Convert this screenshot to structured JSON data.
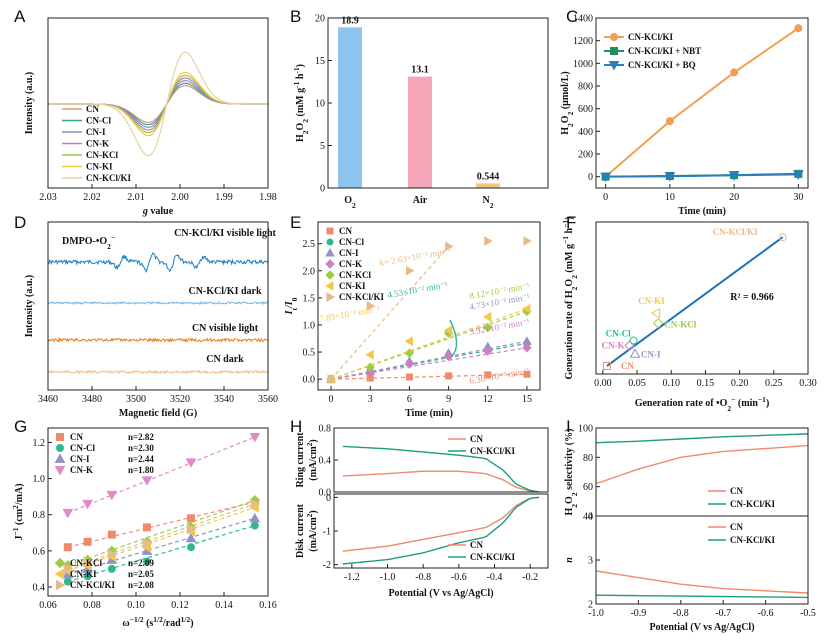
{
  "panel_labels": [
    "A",
    "B",
    "C",
    "D",
    "E",
    "F",
    "G",
    "H",
    "I"
  ],
  "chart_data": [
    {
      "id": "A",
      "type": "line",
      "title": "",
      "xlabel_parts": [
        "g",
        " value"
      ],
      "ylabel": "Intensity (a.u.)",
      "xlim": [
        2.03,
        1.98
      ],
      "xticks": [
        2.03,
        2.02,
        2.01,
        2.0,
        1.99,
        1.98
      ],
      "xticklabels": [
        "2.03",
        "2.02",
        "2.01",
        "2.00",
        "1.99",
        "1.98"
      ],
      "series": [
        {
          "name": "CN",
          "color": "#e8957a",
          "amp": 0.55
        },
        {
          "name": "CN-Cl",
          "color": "#3aa58c",
          "amp": 0.62
        },
        {
          "name": "CN-I",
          "color": "#8a8fc0",
          "amp": 0.7
        },
        {
          "name": "CN-K",
          "color": "#c77ab8",
          "amp": 0.78
        },
        {
          "name": "CN-KCl",
          "color": "#9cc93f",
          "amp": 0.86
        },
        {
          "name": "CN-KI",
          "color": "#f2c84b",
          "amp": 0.95
        },
        {
          "name": "CN-KCl/KI",
          "color": "#e4d3a6",
          "amp": 1.55
        }
      ]
    },
    {
      "id": "B",
      "type": "bar",
      "categories": [
        "O2",
        "Air",
        "N2"
      ],
      "category_labels": [
        [
          "O",
          "2"
        ],
        [
          "Air",
          ""
        ],
        [
          "N",
          "2"
        ]
      ],
      "values": [
        18.9,
        13.1,
        0.544
      ],
      "value_labels": [
        "18.9",
        "13.1",
        "0.544"
      ],
      "colors": [
        "#8ec5ee",
        "#f4a6b8",
        "#f5c77e"
      ],
      "ylabel": "H2O2 (mM g-1 h-1)",
      "ylabel_parts": [
        "H",
        "2",
        "O",
        "2",
        " (mM g",
        "-1",
        " h",
        "-1",
        ")"
      ],
      "ylim": [
        0,
        20
      ],
      "yticks": [
        0,
        5,
        10,
        15,
        20
      ],
      "yticklabels": [
        "0",
        "5",
        "10",
        "15",
        "20"
      ]
    },
    {
      "id": "C",
      "type": "line",
      "xlabel": "Time (min)",
      "ylabel": "H2O2 (μmol/L)",
      "ylabel_parts": [
        "H",
        "2",
        "O",
        "2",
        " (μmol/L)"
      ],
      "xlim": [
        -1.5,
        31.5
      ],
      "ylim": [
        -100,
        1400
      ],
      "xticks": [
        0,
        10,
        20,
        30
      ],
      "xticklabels": [
        "0",
        "10",
        "20",
        "30"
      ],
      "yticks": [
        0,
        200,
        400,
        600,
        800,
        1000,
        1200,
        1400
      ],
      "yticklabels": [
        "0",
        "200",
        "400",
        "600",
        "800",
        "1000",
        "1200",
        "1400"
      ],
      "series": [
        {
          "name": "CN-KCl/KI",
          "color": "#f0a050",
          "marker": "circle",
          "x": [
            0,
            10,
            20,
            30
          ],
          "y": [
            0,
            490,
            920,
            1310
          ]
        },
        {
          "name": "CN-KCl/KI + NBT",
          "color": "#1e9060",
          "marker": "square",
          "x": [
            0,
            10,
            20,
            30
          ],
          "y": [
            0,
            6,
            14,
            25
          ]
        },
        {
          "name": "CN-KCl/KI + BQ",
          "color": "#2980b9",
          "marker": "triangle-down",
          "x": [
            0,
            10,
            20,
            30
          ],
          "y": [
            0,
            4,
            12,
            20
          ]
        }
      ]
    },
    {
      "id": "D",
      "type": "line",
      "xlabel": "Magnetic field (G)",
      "ylabel": "Intensity (a.u.)",
      "xlim": [
        3460,
        3560
      ],
      "xticks": [
        3460,
        3480,
        3500,
        3520,
        3540,
        3560
      ],
      "xticklabels": [
        "3460",
        "3480",
        "3500",
        "3520",
        "3540",
        "3560"
      ],
      "annotation_parts": [
        "DMPO-•O",
        "2",
        "−"
      ],
      "series": [
        {
          "name": "CN-KCl/KI visible light",
          "color": "#1f7fc0"
        },
        {
          "name": "CN-KCl/KI dark",
          "color": "#73b8e6"
        },
        {
          "name": "CN visible light",
          "color": "#e87e22"
        },
        {
          "name": "CN dark",
          "color": "#f2bd88"
        }
      ]
    },
    {
      "id": "E",
      "type": "scatter",
      "xlabel": "Time (min)",
      "ylabel": "It/I0",
      "ylabel_parts": [
        "I",
        "t",
        "/I",
        "0"
      ],
      "xlim": [
        -1,
        16
      ],
      "ylim": [
        -0.2,
        2.9
      ],
      "xticks": [
        0,
        3,
        6,
        9,
        12,
        15
      ],
      "xticklabels": [
        "0",
        "3",
        "6",
        "9",
        "12",
        "15"
      ],
      "yticks": [
        0.0,
        0.5,
        1.0,
        1.5,
        2.0,
        2.5
      ],
      "yticklabels": [
        "0.0",
        "0.5",
        "1.0",
        "1.5",
        "2.0",
        "2.5"
      ],
      "series": [
        {
          "name": "CN",
          "color": "#f08a6c",
          "marker": "square",
          "x": [
            0,
            3,
            6,
            9,
            12,
            15
          ],
          "y": [
            0.0,
            0.02,
            0.04,
            0.06,
            0.08,
            0.09
          ],
          "k": "6.36×10⁻³ min⁻¹"
        },
        {
          "name": "CN-Cl",
          "color": "#2fb890",
          "marker": "circle",
          "x": [
            0,
            3,
            6,
            9,
            12,
            15
          ],
          "y": [
            0.0,
            0.16,
            0.3,
            0.42,
            0.55,
            0.66
          ],
          "k": "4.53×10⁻² min⁻¹"
        },
        {
          "name": "CN-I",
          "color": "#8f94c4",
          "marker": "triangle",
          "x": [
            0,
            3,
            6,
            9,
            12,
            15
          ],
          "y": [
            0.0,
            0.15,
            0.33,
            0.48,
            0.6,
            0.7
          ],
          "k": "4.73×10⁻² min⁻¹"
        },
        {
          "name": "CN-K",
          "color": "#d07ec0",
          "marker": "diamond",
          "x": [
            0,
            3,
            6,
            9,
            12,
            15
          ],
          "y": [
            0.0,
            0.13,
            0.28,
            0.42,
            0.52,
            0.58
          ],
          "k": "3.92×10⁻² min⁻¹"
        },
        {
          "name": "CN-KCl",
          "color": "#9bcc45",
          "marker": "diamond",
          "x": [
            0,
            3,
            6,
            9,
            12,
            15
          ],
          "y": [
            0.0,
            0.22,
            0.48,
            0.85,
            0.95,
            1.25
          ],
          "k": "8.12×10⁻² min⁻¹"
        },
        {
          "name": "CN-KI",
          "color": "#f2c84b",
          "marker": "triangle-left",
          "x": [
            0,
            3,
            6,
            9,
            12,
            15
          ],
          "y": [
            0.0,
            0.45,
            0.7,
            0.9,
            1.15,
            1.3
          ],
          "k": "7.89×10⁻² min⁻¹"
        },
        {
          "name": "CN-KCl/KI",
          "color": "#e6bb8a",
          "marker": "triangle-right",
          "x": [
            0,
            3,
            6,
            9,
            12,
            15
          ],
          "y": [
            0.0,
            1.35,
            2.0,
            2.45,
            2.55,
            2.55
          ],
          "k": "k= 2.63×10⁻¹ min⁻¹"
        }
      ]
    },
    {
      "id": "F",
      "type": "scatter",
      "xlabel_parts": [
        "Generation rate of •O",
        "2",
        "−",
        " (min",
        "−1",
        ")"
      ],
      "ylabel_parts": [
        "Generation rate of H",
        "2",
        "O",
        "2",
        " (mM g",
        "−1",
        " h",
        "−1",
        ")"
      ],
      "xlim": [
        -0.01,
        0.3
      ],
      "ylim": [
        -0.5,
        14.5
      ],
      "xticks": [
        0.0,
        0.05,
        0.1,
        0.15,
        0.2,
        0.25,
        0.3
      ],
      "xticklabels": [
        "0.00",
        "0.05",
        "0.10",
        "0.15",
        "0.20",
        "0.25",
        "0.30"
      ],
      "points": [
        {
          "name": "CN",
          "x": 0.006,
          "y": 0.3,
          "color": "#f08a6c",
          "marker": "square"
        },
        {
          "name": "CN-K",
          "x": 0.039,
          "y": 2.3,
          "color": "#d07ec0",
          "marker": "diamond"
        },
        {
          "name": "CN-I",
          "x": 0.047,
          "y": 1.5,
          "color": "#8f94c4",
          "marker": "triangle"
        },
        {
          "name": "CN-Cl",
          "x": 0.045,
          "y": 2.8,
          "color": "#2fb890",
          "marker": "circle"
        },
        {
          "name": "CN-KCl",
          "x": 0.081,
          "y": 4.5,
          "color": "#9bcc45",
          "marker": "diamond"
        },
        {
          "name": "CN-KI",
          "x": 0.078,
          "y": 5.5,
          "color": "#f2c84b",
          "marker": "triangle-left"
        },
        {
          "name": "CN-KCl/KI",
          "x": 0.263,
          "y": 13.0,
          "color": "#e6bb8a",
          "marker": "circle"
        }
      ],
      "fit": {
        "x": [
          0.006,
          0.263
        ],
        "y": [
          0.3,
          13.0
        ],
        "color": "#1f72b8"
      },
      "r2": "R² = 0.966"
    },
    {
      "id": "G",
      "type": "scatter",
      "xlabel_parts": [
        "ω",
        "−1/2",
        " (s",
        "1/2",
        "/rad",
        "1/2",
        ")"
      ],
      "ylabel_parts": [
        "J",
        "−1",
        " (cm",
        "2",
        "/mA)"
      ],
      "xlim": [
        0.06,
        0.16
      ],
      "ylim": [
        0.35,
        1.28
      ],
      "xticks": [
        0.06,
        0.08,
        0.1,
        0.12,
        0.14,
        0.16
      ],
      "xticklabels": [
        "0.06",
        "0.08",
        "0.10",
        "0.12",
        "0.14",
        "0.16"
      ],
      "yticks": [
        0.4,
        0.6,
        0.8,
        1.0,
        1.2
      ],
      "yticklabels": [
        "0.4",
        "0.6",
        "0.8",
        "1.0",
        "1.2"
      ],
      "x": [
        0.069,
        0.078,
        0.089,
        0.105,
        0.125,
        0.154
      ],
      "series": [
        {
          "name": "CN",
          "n": "n=2.82",
          "color": "#f08a6c",
          "marker": "square",
          "y": [
            0.62,
            0.65,
            0.69,
            0.73,
            0.78,
            0.87
          ]
        },
        {
          "name": "CN-Cl",
          "n": "n=2.30",
          "color": "#2fb890",
          "marker": "circle",
          "y": [
            0.43,
            0.46,
            0.5,
            0.54,
            0.62,
            0.74
          ]
        },
        {
          "name": "CN-I",
          "n": "n=2.44",
          "color": "#8f94c4",
          "marker": "triangle",
          "y": [
            0.47,
            0.5,
            0.55,
            0.6,
            0.67,
            0.78
          ]
        },
        {
          "name": "CN-K",
          "n": "n=1.80",
          "color": "#e08ac8",
          "marker": "triangle-down",
          "y": [
            0.81,
            0.86,
            0.91,
            0.99,
            1.09,
            1.23
          ]
        },
        {
          "name": "CN-KCl",
          "n": "n=2.09",
          "color": "#9bcc45",
          "marker": "diamond",
          "y": [
            0.52,
            0.55,
            0.6,
            0.65,
            0.73,
            0.88
          ]
        },
        {
          "name": "CN-KI",
          "n": "n=2.05",
          "color": "#f2c84b",
          "marker": "triangle-left",
          "y": [
            0.49,
            0.52,
            0.57,
            0.62,
            0.71,
            0.84
          ]
        },
        {
          "name": "CN-KCl/KI",
          "n": "n=2.08",
          "color": "#e6bb8a",
          "marker": "triangle-right",
          "y": [
            0.5,
            0.54,
            0.58,
            0.64,
            0.72,
            0.86
          ]
        }
      ]
    },
    {
      "id": "H",
      "type": "line",
      "xlabel": "Potential (V vs Ag/AgCl)",
      "xlim": [
        -1.3,
        -0.1
      ],
      "xticks": [
        -1.2,
        -1.0,
        -0.8,
        -0.6,
        -0.4,
        -0.2
      ],
      "xticklabels": [
        "-1.2",
        "-1.0",
        "-0.8",
        "-0.6",
        "-0.4",
        "-0.2"
      ],
      "top": {
        "ylabel": "Ring current (mA/cm²)",
        "ylabel_parts": [
          "Ring current",
          "(mA/cm",
          "2",
          ")"
        ],
        "ylim": [
          0.0,
          0.8
        ],
        "yticks": [
          0.0,
          0.4,
          0.8
        ],
        "yticklabels": [
          "0.0",
          "0.4",
          "0.8"
        ],
        "series": [
          {
            "name": "CN",
            "color": "#f08a6c",
            "x": [
              -1.25,
              -1.0,
              -0.8,
              -0.6,
              -0.45,
              -0.35,
              -0.28,
              -0.2,
              -0.15
            ],
            "y": [
              0.2,
              0.23,
              0.26,
              0.26,
              0.23,
              0.15,
              0.06,
              0.01,
              0.0
            ]
          },
          {
            "name": "CN-KCl/KI",
            "color": "#1f9e7a",
            "x": [
              -1.25,
              -1.0,
              -0.8,
              -0.6,
              -0.45,
              -0.35,
              -0.28,
              -0.2,
              -0.15
            ],
            "y": [
              0.57,
              0.54,
              0.5,
              0.46,
              0.42,
              0.27,
              0.1,
              0.02,
              0.0
            ]
          }
        ]
      },
      "bottom": {
        "ylabel": "Disk current (mA/cm²)",
        "ylabel_parts": [
          "Disk current",
          "(mA/cm",
          "2",
          ")"
        ],
        "ylim": [
          -2.1,
          0.1
        ],
        "yticks": [
          -2,
          -1,
          0
        ],
        "yticklabels": [
          "-2",
          "-1",
          "0"
        ],
        "series": [
          {
            "name": "CN",
            "color": "#f08a6c",
            "x": [
              -1.25,
              -1.0,
              -0.8,
              -0.6,
              -0.45,
              -0.35,
              -0.28,
              -0.2,
              -0.15
            ],
            "y": [
              -1.6,
              -1.45,
              -1.25,
              -1.05,
              -0.9,
              -0.6,
              -0.25,
              -0.02,
              0.0
            ]
          },
          {
            "name": "CN-KCl/KI",
            "color": "#1f9e7a",
            "x": [
              -1.25,
              -1.0,
              -0.8,
              -0.6,
              -0.45,
              -0.35,
              -0.28,
              -0.2,
              -0.15
            ],
            "y": [
              -1.98,
              -1.85,
              -1.65,
              -1.35,
              -1.18,
              -0.75,
              -0.3,
              -0.03,
              0.0
            ]
          }
        ]
      }
    },
    {
      "id": "I",
      "type": "line",
      "xlabel": "Potential (V vs Ag/AgCl)",
      "xlim": [
        -1.0,
        -0.5
      ],
      "xticks": [
        -1.0,
        -0.9,
        -0.8,
        -0.7,
        -0.6,
        -0.5
      ],
      "xticklabels": [
        "-1.0",
        "-0.9",
        "-0.8",
        "-0.7",
        "-0.6",
        "-0.5"
      ],
      "top": {
        "ylabel": "H2O2 selectivity (%)",
        "ylabel_parts": [
          "H",
          "2",
          "O",
          "2",
          " selectivity (%)"
        ],
        "ylim": [
          40,
          100
        ],
        "yticks": [
          40,
          60,
          80,
          100
        ],
        "yticklabels": [
          "40",
          "60",
          "80",
          "100"
        ],
        "series": [
          {
            "name": "CN",
            "color": "#f08a6c",
            "x": [
              -1.0,
              -0.9,
              -0.8,
              -0.7,
              -0.6,
              -0.5
            ],
            "y": [
              62,
              72,
              80,
              84,
              86,
              88
            ]
          },
          {
            "name": "CN-KCl/KI",
            "color": "#1f9e7a",
            "x": [
              -1.0,
              -0.9,
              -0.8,
              -0.7,
              -0.6,
              -0.5
            ],
            "y": [
              90,
              91,
              92.5,
              94,
              95,
              96
            ]
          }
        ]
      },
      "bottom": {
        "ylabel": "n",
        "ylim": [
          2,
          4
        ],
        "yticks": [
          2,
          3,
          4
        ],
        "yticklabels": [
          "2",
          "3",
          "4"
        ],
        "series": [
          {
            "name": "CN",
            "color": "#f08a6c",
            "x": [
              -1.0,
              -0.9,
              -0.8,
              -0.7,
              -0.6,
              -0.5
            ],
            "y": [
              2.75,
              2.6,
              2.45,
              2.35,
              2.3,
              2.25
            ]
          },
          {
            "name": "CN-KCl/KI",
            "color": "#1f9e7a",
            "x": [
              -1.0,
              -0.9,
              -0.8,
              -0.7,
              -0.6,
              -0.5
            ],
            "y": [
              2.2,
              2.19,
              2.18,
              2.17,
              2.16,
              2.15
            ]
          }
        ]
      }
    }
  ]
}
